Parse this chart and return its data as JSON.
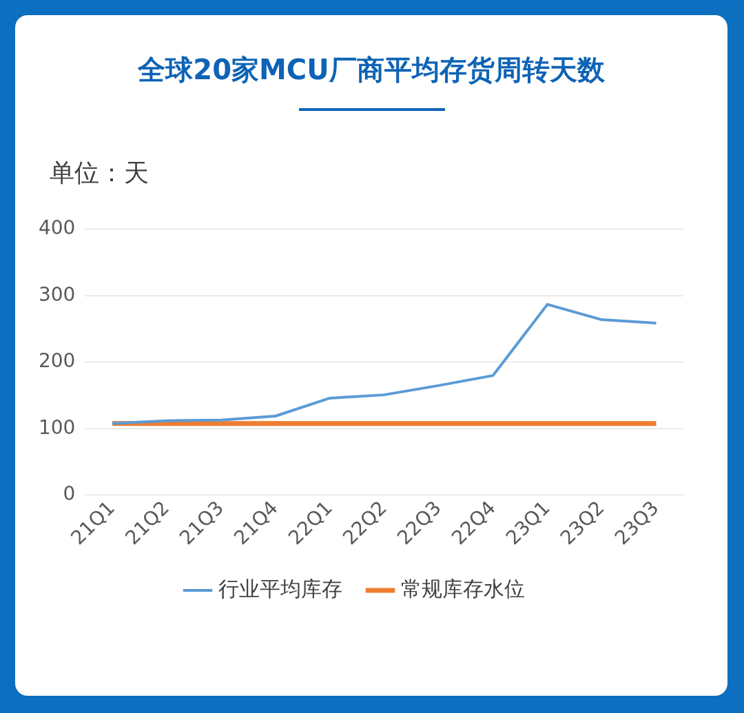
{
  "chart_data": {
    "type": "line",
    "title": "全球20家MCU厂商平均存货周转天数",
    "ylabel": "单位：天",
    "categories": [
      "21Q1",
      "21Q2",
      "21Q3",
      "21Q4",
      "22Q1",
      "22Q2",
      "22Q3",
      "22Q4",
      "23Q1",
      "23Q2",
      "23Q3"
    ],
    "series": [
      {
        "name": "行业平均库存",
        "color": "#5b9bd5",
        "values": [
          108,
          112,
          113,
          119,
          146,
          151,
          165,
          180,
          287,
          264,
          259
        ]
      },
      {
        "name": "常规库存水位",
        "color": "#ed7d31",
        "values": [
          108,
          108,
          108,
          108,
          108,
          108,
          108,
          108,
          108,
          108,
          108
        ]
      }
    ],
    "ylim": [
      0,
      400
    ],
    "yticks": [
      0,
      100,
      200,
      300,
      400
    ],
    "grid": "y",
    "legend": "bottom",
    "marker": "none",
    "line_style": "solid"
  }
}
